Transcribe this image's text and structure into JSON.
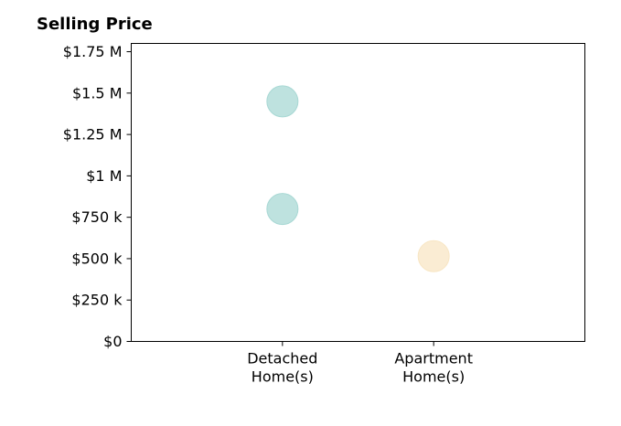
{
  "chart_data": {
    "type": "scatter",
    "title": "Selling Price",
    "xlabel": "",
    "ylabel": "",
    "categories": [
      "Detached\nHome(s)",
      "Apartment\nHome(s)"
    ],
    "series": [
      {
        "color": "#a8d8d4",
        "points": [
          {
            "category": "Detached\nHome(s)",
            "y": 1450000
          },
          {
            "category": "Detached\nHome(s)",
            "y": 800000
          }
        ]
      },
      {
        "color": "#f8e6c4",
        "points": [
          {
            "category": "Apartment\nHome(s)",
            "y": 515000
          }
        ]
      }
    ],
    "ylim": [
      0,
      1800000
    ],
    "yticks": [
      {
        "value": 0,
        "label": "$0"
      },
      {
        "value": 250000,
        "label": "$250 k"
      },
      {
        "value": 500000,
        "label": "$500 k"
      },
      {
        "value": 750000,
        "label": "$750 k"
      },
      {
        "value": 1000000,
        "label": "$1 M"
      },
      {
        "value": 1250000,
        "label": "$1.25 M"
      },
      {
        "value": 1500000,
        "label": "$1.5 M"
      },
      {
        "value": 1750000,
        "label": "$1.75 M"
      }
    ],
    "grid": false,
    "legend": "none"
  }
}
